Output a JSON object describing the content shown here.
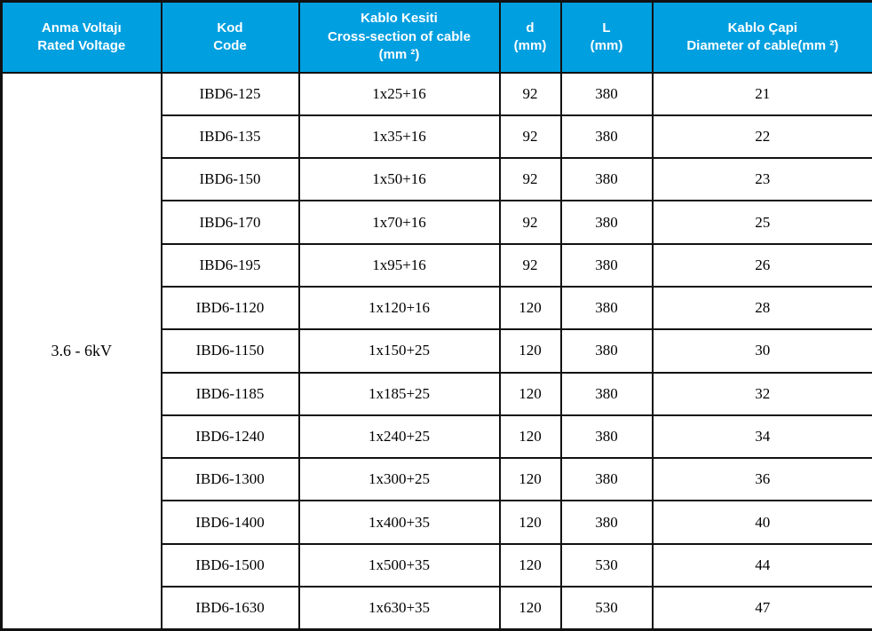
{
  "colors": {
    "header_bg": "#009FE0",
    "header_text": "#FFFFFF",
    "border": "#111111",
    "body_text": "#000000"
  },
  "header": {
    "columns": [
      {
        "line1": "Anma Voltajı",
        "line2": "Rated Voltage"
      },
      {
        "line1": "Kod",
        "line2": "Code"
      },
      {
        "line1": "Kablo Kesiti",
        "line2": "Cross-section of cable",
        "line3": "(mm ²)"
      },
      {
        "line1": "d",
        "line2": "(mm)"
      },
      {
        "line1": "L",
        "line2": "(mm)"
      },
      {
        "line1": "Kablo Çapi",
        "line2": "Diameter of cable(mm ²)"
      }
    ]
  },
  "voltage_group": "3.6 - 6kV",
  "rows": [
    {
      "code": "IBD6-125",
      "cross_section": "1x25+16",
      "d": "92",
      "L": "380",
      "diameter": "21"
    },
    {
      "code": "IBD6-135",
      "cross_section": "1x35+16",
      "d": "92",
      "L": "380",
      "diameter": "22"
    },
    {
      "code": "IBD6-150",
      "cross_section": "1x50+16",
      "d": "92",
      "L": "380",
      "diameter": "23"
    },
    {
      "code": "IBD6-170",
      "cross_section": "1x70+16",
      "d": "92",
      "L": "380",
      "diameter": "25"
    },
    {
      "code": "IBD6-195",
      "cross_section": "1x95+16",
      "d": "92",
      "L": "380",
      "diameter": "26"
    },
    {
      "code": "IBD6-1120",
      "cross_section": "1x120+16",
      "d": "120",
      "L": "380",
      "diameter": "28"
    },
    {
      "code": "IBD6-1150",
      "cross_section": "1x150+25",
      "d": "120",
      "L": "380",
      "diameter": "30"
    },
    {
      "code": "IBD6-1185",
      "cross_section": "1x185+25",
      "d": "120",
      "L": "380",
      "diameter": "32"
    },
    {
      "code": "IBD6-1240",
      "cross_section": "1x240+25",
      "d": "120",
      "L": "380",
      "diameter": "34"
    },
    {
      "code": "IBD6-1300",
      "cross_section": "1x300+25",
      "d": "120",
      "L": "380",
      "diameter": "36"
    },
    {
      "code": "IBD6-1400",
      "cross_section": "1x400+35",
      "d": "120",
      "L": "380",
      "diameter": "40"
    },
    {
      "code": "IBD6-1500",
      "cross_section": "1x500+35",
      "d": "120",
      "L": "530",
      "diameter": "44"
    },
    {
      "code": "IBD6-1630",
      "cross_section": "1x630+35",
      "d": "120",
      "L": "530",
      "diameter": "47"
    }
  ]
}
